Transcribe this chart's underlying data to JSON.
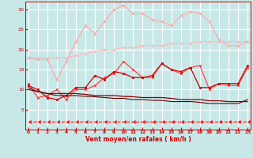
{
  "background_color": "#c8e8e8",
  "grid_color": "#ffffff",
  "xlabel": "Vent moyen/en rafales ( km/h )",
  "x_ticks": [
    0,
    1,
    2,
    3,
    4,
    5,
    6,
    7,
    8,
    9,
    10,
    11,
    12,
    13,
    14,
    15,
    16,
    17,
    18,
    19,
    20,
    21,
    22,
    23
  ],
  "ylim": [
    0,
    32
  ],
  "yticks": [
    5,
    10,
    15,
    20,
    25,
    30
  ],
  "xlim": [
    -0.3,
    23.3
  ],
  "curves": [
    {
      "color": "#ffbbbb",
      "marker": "D",
      "markersize": 1.5,
      "linewidth": 0.9,
      "y": [
        18.0,
        18.0,
        18.0,
        18.0,
        18.0,
        18.5,
        19.0,
        19.5,
        20.0,
        20.0,
        20.5,
        20.5,
        21.0,
        21.0,
        21.0,
        21.5,
        21.5,
        21.5,
        22.0,
        22.0,
        22.0,
        22.0,
        22.0,
        22.0
      ]
    },
    {
      "color": "#ffaaaa",
      "marker": "D",
      "markersize": 1.5,
      "linewidth": 0.9,
      "y": [
        18.0,
        17.5,
        17.5,
        12.5,
        17.0,
        22.0,
        26.0,
        24.0,
        27.0,
        30.0,
        31.0,
        29.0,
        29.0,
        27.5,
        27.0,
        26.0,
        28.5,
        29.5,
        29.0,
        27.0,
        22.5,
        21.0,
        21.0,
        22.0
      ]
    },
    {
      "color": "#ff4444",
      "marker": "s",
      "markersize": 1.8,
      "linewidth": 0.9,
      "y": [
        11.5,
        8.0,
        8.5,
        10.0,
        7.5,
        10.0,
        10.0,
        11.0,
        13.0,
        14.0,
        17.0,
        15.0,
        13.0,
        13.0,
        16.5,
        15.0,
        14.0,
        15.5,
        16.0,
        10.0,
        11.5,
        11.0,
        11.0,
        15.5
      ]
    },
    {
      "color": "#cc0000",
      "marker": "s",
      "markersize": 1.8,
      "linewidth": 0.9,
      "y": [
        11.0,
        10.0,
        8.0,
        7.5,
        8.5,
        10.5,
        10.5,
        13.5,
        12.5,
        14.5,
        14.0,
        13.0,
        13.0,
        13.5,
        16.5,
        15.0,
        14.5,
        15.5,
        10.5,
        10.5,
        11.5,
        11.5,
        11.5,
        16.0
      ]
    },
    {
      "color": "#880000",
      "marker": null,
      "markersize": 0,
      "linewidth": 0.9,
      "y": [
        10.5,
        9.5,
        9.0,
        9.0,
        9.0,
        9.0,
        8.8,
        8.5,
        8.5,
        8.5,
        8.3,
        8.2,
        8.0,
        8.0,
        8.0,
        7.8,
        7.5,
        7.5,
        7.5,
        7.2,
        7.2,
        7.0,
        7.0,
        7.0
      ]
    },
    {
      "color": "#660000",
      "marker": null,
      "markersize": 0,
      "linewidth": 0.8,
      "y": [
        10.0,
        9.5,
        9.0,
        8.5,
        8.5,
        8.5,
        8.3,
        8.2,
        8.0,
        7.8,
        7.8,
        7.5,
        7.5,
        7.3,
        7.3,
        7.0,
        7.0,
        7.0,
        6.8,
        6.5,
        6.5,
        6.5,
        6.5,
        7.5
      ]
    },
    {
      "color": "#ff0000",
      "marker": 4,
      "markersize": 3.0,
      "linewidth": 0.8,
      "linestyle": "--",
      "y": [
        2.0,
        2.0,
        2.0,
        2.0,
        2.0,
        2.0,
        2.0,
        2.0,
        2.0,
        2.0,
        2.0,
        2.0,
        2.0,
        2.0,
        2.0,
        2.0,
        2.0,
        2.0,
        2.0,
        2.0,
        2.0,
        2.0,
        2.0,
        2.0
      ]
    }
  ]
}
